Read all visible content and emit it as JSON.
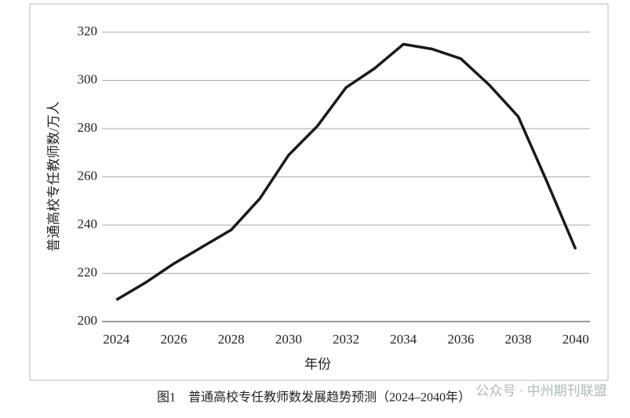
{
  "chart_data": {
    "type": "line",
    "caption": "图1　普通高校专任教师数发展趋势预测（2024–2040年）",
    "x_label": "年份",
    "y_label": "普通高校专任教师数/万人",
    "x": [
      2024,
      2025,
      2026,
      2027,
      2028,
      2029,
      2030,
      2031,
      2032,
      2033,
      2034,
      2035,
      2036,
      2037,
      2038,
      2039,
      2040
    ],
    "series": [
      {
        "name": "普通高校专任教师数",
        "color": "#1a1a1a",
        "values": [
          209,
          216,
          224,
          231,
          238,
          251,
          269,
          281,
          297,
          305,
          315,
          313,
          309,
          298,
          285,
          258,
          230
        ]
      }
    ],
    "xlim": [
      2023.5,
      2040.5
    ],
    "xticks": [
      2024,
      2026,
      2028,
      2030,
      2032,
      2034,
      2036,
      2038,
      2040
    ],
    "ylim": [
      200,
      320
    ],
    "yticks": [
      200,
      220,
      240,
      260,
      280,
      300,
      320
    ],
    "grid": true
  },
  "watermark": "公众号 · 中州期刊联盟"
}
